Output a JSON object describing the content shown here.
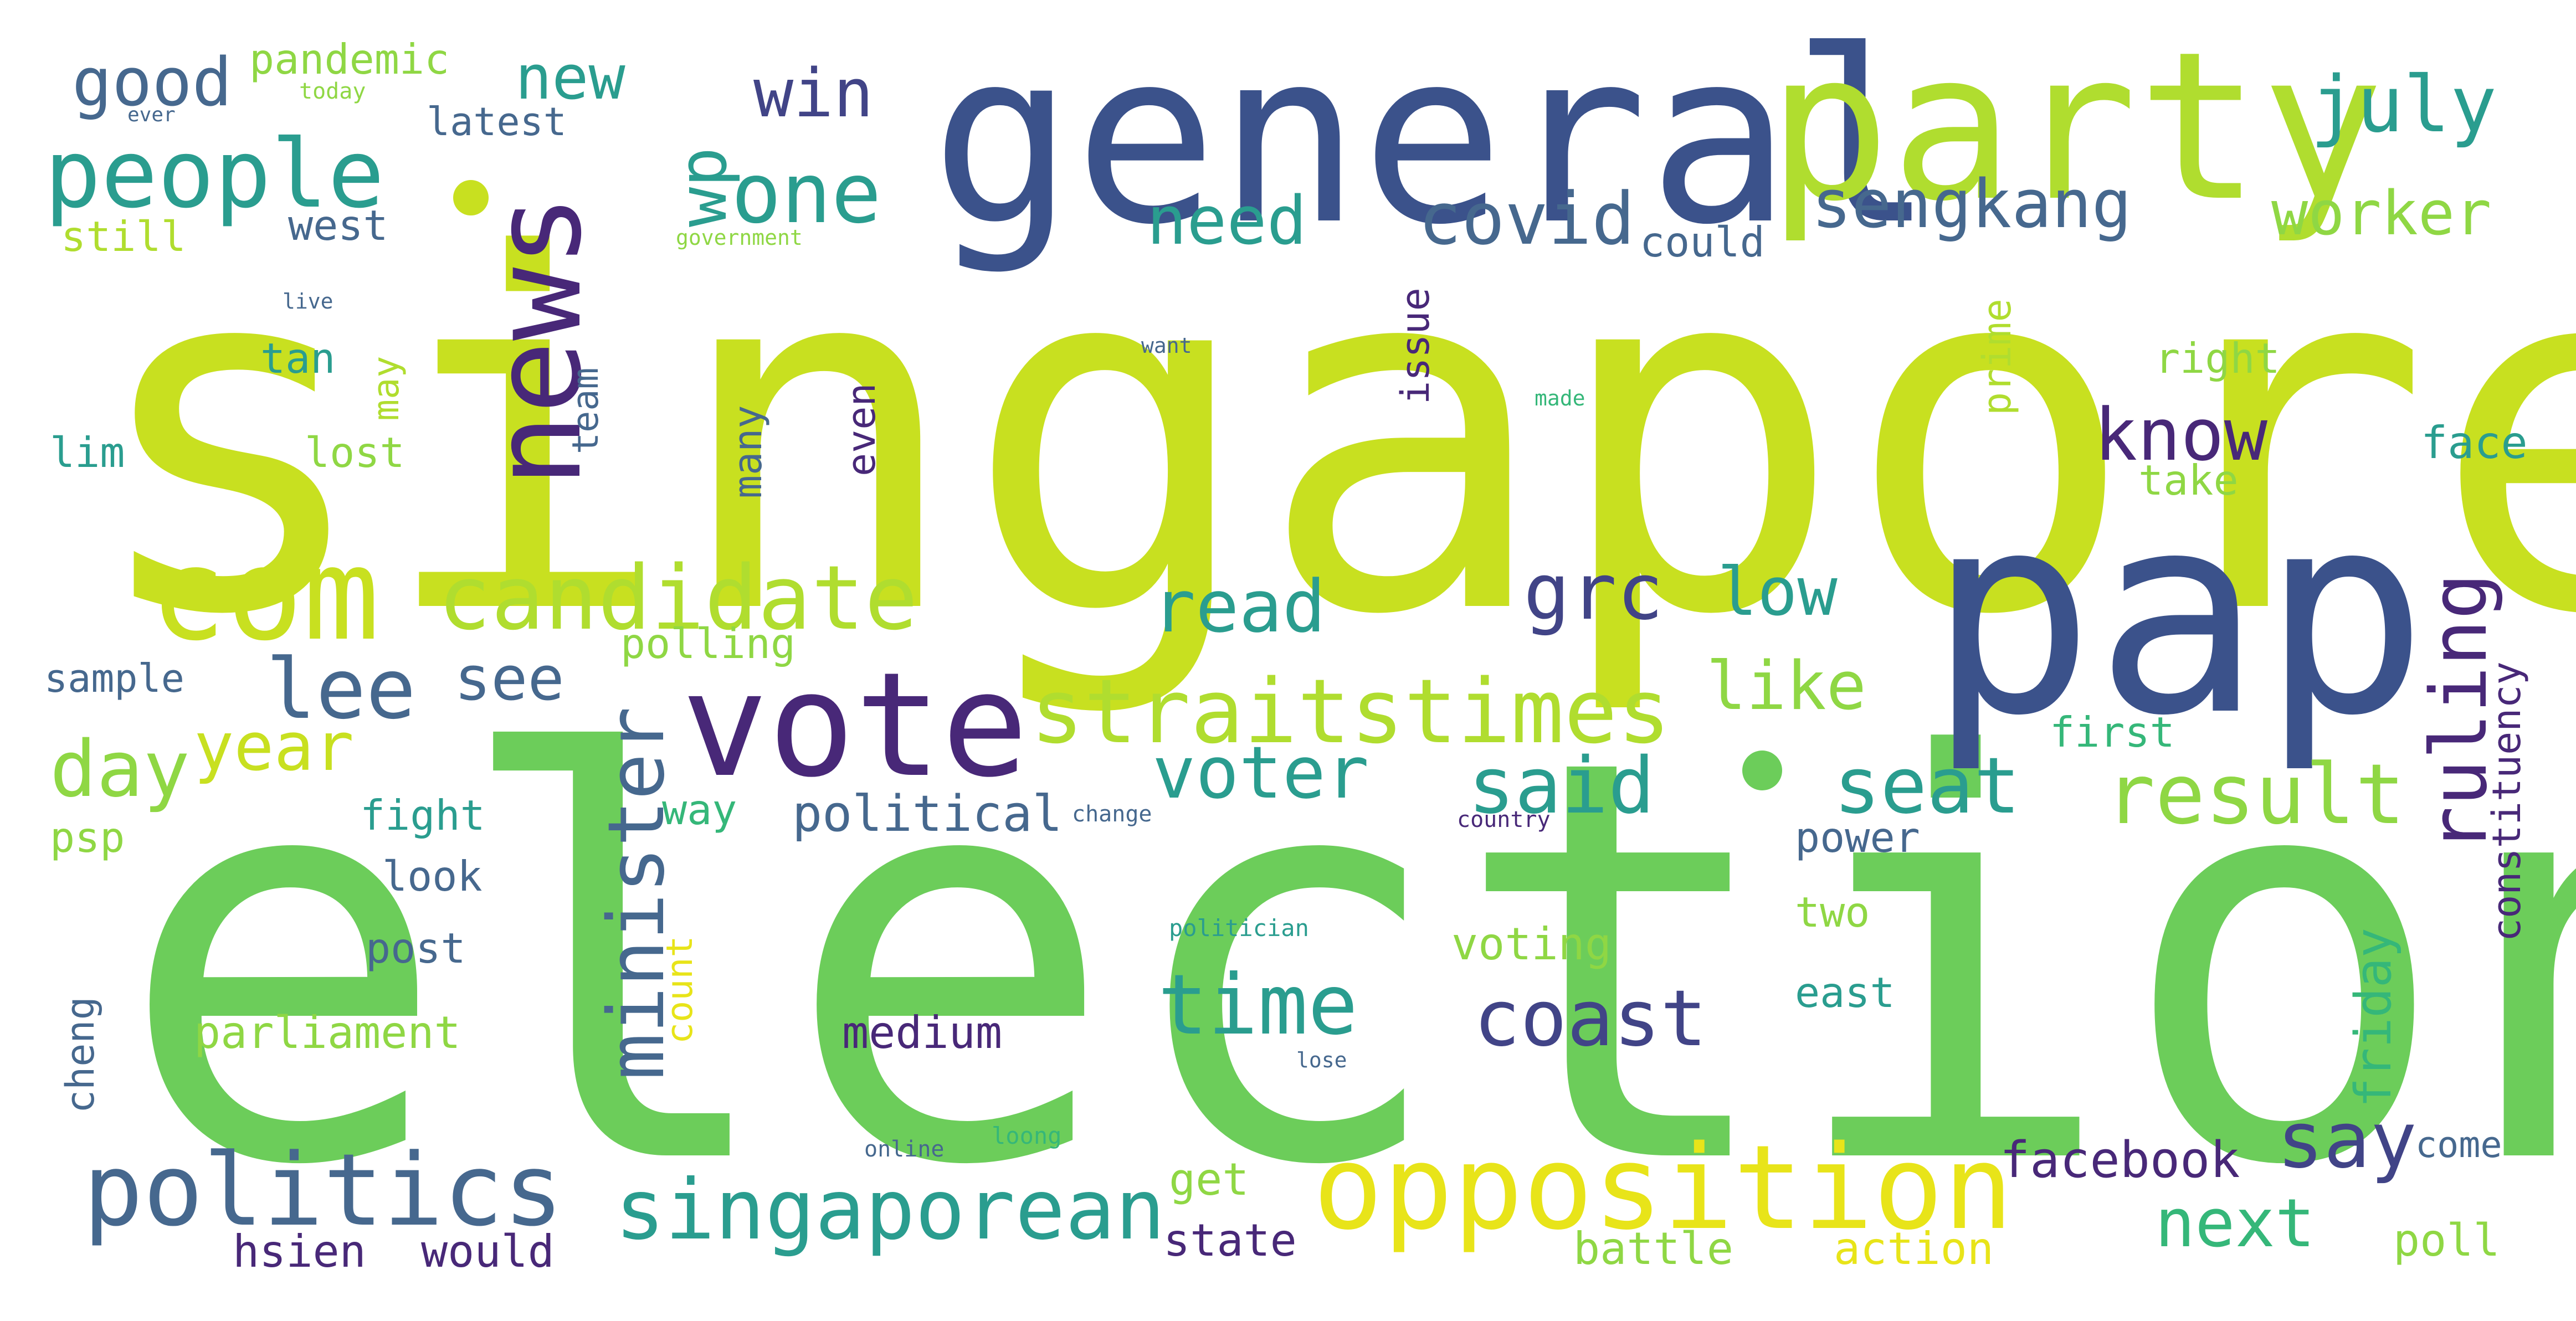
{
  "wordcloud": {
    "colors": {
      "background": "#ffffff",
      "lime": "#c8e020",
      "light_lime": "#b0dd2f",
      "green": "#6ccd5a",
      "light_green": "#8fd744",
      "teal": "#2a9d8f",
      "teal_green": "#35b779",
      "blue": "#3b528b",
      "slate": "#46688e",
      "deep_blue": "#414487",
      "purple": "#482878",
      "dark_purple": "#440154",
      "yellow": "#e8e419"
    },
    "words": {
      "singapore": "singapore",
      "election": "election",
      "general": "general",
      "party": "party",
      "pap": "pap",
      "news": "news",
      "com": "com",
      "vote": "vote",
      "opposition": "opposition",
      "politics": "politics",
      "people": "people",
      "straitstimes": "straitstimes",
      "candidate": "candidate",
      "singaporean": "singaporean",
      "result": "result",
      "time": "time",
      "coast": "coast",
      "grc": "grc",
      "minister": "minister",
      "ruling": "ruling",
      "voter": "voter",
      "seat": "seat",
      "said": "said",
      "day": "day",
      "year": "year",
      "lee": "lee",
      "read": "read",
      "one": "one",
      "wp": "wp",
      "win": "win",
      "good": "good",
      "new": "new",
      "july": "july",
      "worker": "worker",
      "sengkang": "sengkang",
      "covid": "covid",
      "need": "need",
      "know": "know",
      "low": "low",
      "like": "like",
      "say": "say",
      "next": "next",
      "see": "see",
      "facebook": "facebook",
      "constituency": "constituency",
      "friday": "friday",
      "political": "political",
      "pandemic": "pandemic",
      "latest": "latest",
      "still": "still",
      "west": "west",
      "tan": "tan",
      "lim": "lim",
      "lost": "lost",
      "team": "team",
      "may": "may",
      "many": "many",
      "even": "even",
      "issue": "issue",
      "prime": "prime",
      "right": "right",
      "take": "take",
      "face": "face",
      "could": "could",
      "first": "first",
      "power": "power",
      "two": "two",
      "east": "east",
      "voting": "voting",
      "polling": "polling",
      "sample": "sample",
      "psp": "psp",
      "fight": "fight",
      "look": "look",
      "post": "post",
      "way": "way",
      "count": "count",
      "cheng": "cheng",
      "parliament": "parliament",
      "medium": "medium",
      "hsien": "hsien",
      "would": "would",
      "state": "state",
      "get": "get",
      "battle": "battle",
      "action": "action",
      "poll": "poll",
      "come": "come",
      "loong": "loong",
      "online": "online",
      "politician": "politician",
      "lose": "lose",
      "change": "change",
      "country": "country",
      "made": "made",
      "want": "want",
      "live": "live",
      "government": "government",
      "today": "today",
      "ever": "ever"
    }
  }
}
